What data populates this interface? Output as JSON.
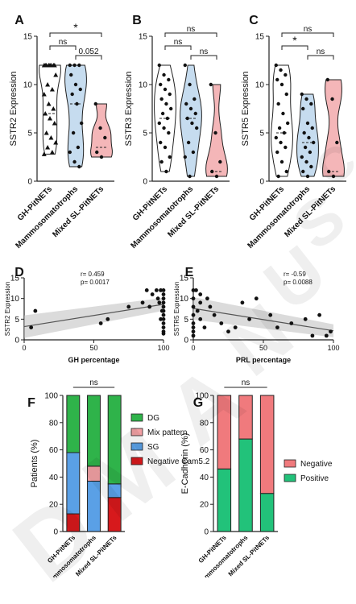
{
  "watermark": {
    "letters": [
      "D",
      "M",
      "A",
      "N",
      "U",
      "S",
      "C"
    ],
    "color": "#000000"
  },
  "colors": {
    "gh": "#ffffff",
    "mammo": "#c6dcef",
    "mixed": "#f4b6b8",
    "dg": "#2fb34a",
    "mix_pattern": "#f2a0a4",
    "sg": "#5aa0e6",
    "negative_cam": "#d7191c",
    "ecad_negative": "#f07a7d",
    "ecad_positive": "#22c27a"
  },
  "chart_data": [
    {
      "panel": "A",
      "type": "violin",
      "categories": [
        "GH-PitNETs",
        "Mammosomatotrophs",
        "Mixed SL-PitNETs"
      ],
      "ylabel": "SSTR2 Expression",
      "ylim": [
        0,
        15
      ],
      "yticks": [
        0,
        5,
        10,
        15
      ],
      "series": [
        {
          "values": [
            12,
            12,
            12,
            12,
            12,
            12,
            12,
            12,
            11,
            10,
            9.5,
            9,
            8,
            7.5,
            7,
            6.5,
            6,
            5,
            4.5,
            4,
            3.5,
            3,
            2.8
          ]
        },
        {
          "values": [
            12,
            12,
            12,
            11,
            10,
            9.5,
            9,
            8,
            6,
            5,
            3.5,
            3,
            2,
            1.5
          ]
        },
        {
          "values": [
            8,
            5.5,
            4.5,
            3,
            2.5
          ]
        }
      ],
      "medians": [
        7,
        8,
        3.5
      ],
      "brackets": [
        {
          "from": 0,
          "to": 2,
          "label": "*"
        },
        {
          "from": 0,
          "to": 1,
          "label": "ns"
        },
        {
          "from": 1,
          "to": 2,
          "label": "0.052"
        }
      ]
    },
    {
      "panel": "B",
      "type": "violin",
      "categories": [
        "GH-PitNETs",
        "Mammosomatotrophs",
        "Mixed SL-PitNETs"
      ],
      "ylabel": "SSTR3 Expression",
      "ylim": [
        0,
        15
      ],
      "yticks": [
        0,
        5,
        10,
        15
      ],
      "series": [
        {
          "values": [
            12,
            11,
            10.5,
            10,
            9.5,
            9,
            8.5,
            8,
            7.5,
            7,
            6.5,
            6,
            5.5,
            5,
            4,
            3.5,
            2.5,
            2,
            1
          ]
        },
        {
          "values": [
            12,
            10,
            8.5,
            8,
            7.5,
            7,
            6.5,
            6,
            5.5,
            4,
            3,
            2.5,
            0.5
          ]
        },
        {
          "values": [
            10,
            5,
            2,
            1,
            0.5
          ]
        }
      ],
      "medians": [
        6.5,
        6.5,
        1
      ],
      "brackets": [
        {
          "from": 0,
          "to": 2,
          "label": "ns"
        },
        {
          "from": 0,
          "to": 1,
          "label": "ns"
        },
        {
          "from": 1,
          "to": 2,
          "label": "ns"
        }
      ]
    },
    {
      "panel": "C",
      "type": "violin",
      "categories": [
        "GH-PitNETs",
        "Mammosomatotrophs",
        "Mixed SL-PitNETs"
      ],
      "ylabel": "SSTR5 Expression",
      "ylim": [
        0,
        15
      ],
      "yticks": [
        0,
        5,
        10,
        15
      ],
      "series": [
        {
          "values": [
            12,
            11.5,
            11,
            10.5,
            10,
            9,
            8,
            7,
            6,
            5.5,
            5,
            4.5,
            4,
            3.5,
            3,
            2,
            1,
            0.5
          ]
        },
        {
          "values": [
            9,
            8.5,
            8,
            7.5,
            6,
            5.5,
            5,
            4.5,
            4,
            3.5,
            3,
            2.5,
            2,
            1.5,
            1,
            0.5
          ]
        },
        {
          "values": [
            10.5,
            8.5,
            4,
            1,
            0.5
          ]
        }
      ],
      "medians": [
        5,
        4,
        1
      ],
      "brackets": [
        {
          "from": 0,
          "to": 2,
          "label": "ns"
        },
        {
          "from": 0,
          "to": 1,
          "label": "*"
        },
        {
          "from": 1,
          "to": 2,
          "label": "ns"
        }
      ]
    },
    {
      "panel": "D",
      "type": "scatter",
      "xlabel": "GH percentage",
      "ylabel": "SSTR2 Expression",
      "xlim": [
        0,
        100
      ],
      "ylim": [
        0,
        15
      ],
      "xticks": [
        0,
        50,
        100
      ],
      "yticks": [
        0,
        5,
        10,
        15
      ],
      "annotation": [
        "r= 0.459",
        "p= 0.0017"
      ],
      "points": [
        [
          5,
          3
        ],
        [
          8,
          7
        ],
        [
          55,
          4
        ],
        [
          60,
          5
        ],
        [
          75,
          8
        ],
        [
          85,
          9
        ],
        [
          88,
          12
        ],
        [
          90,
          8
        ],
        [
          92,
          11
        ],
        [
          95,
          12
        ],
        [
          96,
          10
        ],
        [
          98,
          12
        ],
        [
          100,
          12
        ],
        [
          100,
          11
        ],
        [
          100,
          10
        ],
        [
          100,
          9
        ],
        [
          100,
          8
        ],
        [
          100,
          7
        ],
        [
          100,
          6
        ],
        [
          100,
          5
        ],
        [
          100,
          4
        ],
        [
          100,
          3
        ],
        [
          100,
          2
        ],
        [
          100,
          1.5
        ],
        [
          97,
          9
        ],
        [
          99,
          7
        ],
        [
          98,
          5
        ]
      ],
      "fit": [
        [
          0,
          3.2
        ],
        [
          100,
          8.6
        ]
      ]
    },
    {
      "panel": "E",
      "type": "scatter",
      "xlabel": "PRL percentage",
      "ylabel": "SSTR5 Expression",
      "xlim": [
        0,
        100
      ],
      "ylim": [
        0,
        15
      ],
      "xticks": [
        0,
        50,
        100
      ],
      "yticks": [
        0,
        5,
        10,
        15
      ],
      "annotation": [
        "r= -0.59",
        "p= 0.0088"
      ],
      "points": [
        [
          0,
          12
        ],
        [
          0,
          10
        ],
        [
          0,
          8
        ],
        [
          0,
          6
        ],
        [
          0,
          4
        ],
        [
          0,
          3
        ],
        [
          0,
          2
        ],
        [
          0,
          1
        ],
        [
          2,
          12
        ],
        [
          3,
          7
        ],
        [
          5,
          11
        ],
        [
          5,
          9
        ],
        [
          5,
          5
        ],
        [
          8,
          3
        ],
        [
          10,
          10
        ],
        [
          12,
          8
        ],
        [
          15,
          6
        ],
        [
          20,
          4
        ],
        [
          25,
          2
        ],
        [
          30,
          3
        ],
        [
          35,
          9
        ],
        [
          40,
          5
        ],
        [
          45,
          10
        ],
        [
          55,
          6
        ],
        [
          60,
          3
        ],
        [
          70,
          4
        ],
        [
          80,
          5
        ],
        [
          85,
          1
        ],
        [
          90,
          6
        ],
        [
          95,
          1
        ],
        [
          98,
          2
        ]
      ],
      "fit": [
        [
          0,
          7.6
        ],
        [
          100,
          2.2
        ]
      ]
    },
    {
      "panel": "F",
      "type": "bar",
      "stacked": true,
      "categories": [
        "GH-PitNETs",
        "Mammosomatotrophs",
        "Mixed SL-PitNETs"
      ],
      "ylabel": "Patients (%)",
      "ylim": [
        0,
        100
      ],
      "yticks": [
        0,
        20,
        40,
        60,
        80,
        100
      ],
      "bracket_label": "ns",
      "legend_position": "right",
      "series": [
        {
          "name": "Negative Cam5.2",
          "values": [
            13,
            0,
            25
          ]
        },
        {
          "name": "SG",
          "values": [
            45,
            37,
            10
          ]
        },
        {
          "name": "Mix pattern",
          "values": [
            0,
            11,
            0
          ]
        },
        {
          "name": "DG",
          "values": [
            42,
            52,
            65
          ]
        }
      ]
    },
    {
      "panel": "G",
      "type": "bar",
      "stacked": true,
      "categories": [
        "GH-PitNETs",
        "Mammosomatotrophs",
        "Mixed SL-PitNETs"
      ],
      "ylabel": "E-Cadherin (%)",
      "ylim": [
        0,
        100
      ],
      "yticks": [
        0,
        20,
        40,
        60,
        80,
        100
      ],
      "bracket_label": "ns",
      "legend_position": "right",
      "series": [
        {
          "name": "Positive",
          "values": [
            46,
            68,
            28
          ]
        },
        {
          "name": "Negative",
          "values": [
            54,
            32,
            72
          ]
        }
      ]
    }
  ]
}
